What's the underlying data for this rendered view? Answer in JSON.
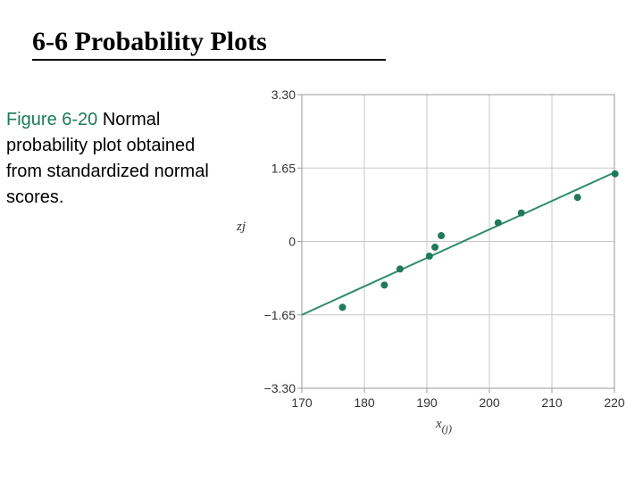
{
  "slide": {
    "title": "6-6 Probability Plots",
    "caption_label": "Figure 6-20",
    "caption_text": " Normal probability plot obtained from standardized normal scores."
  },
  "chart_data": {
    "type": "scatter",
    "xlabel": "x(j)",
    "ylabel": "zj",
    "xlim": [
      170,
      220
    ],
    "ylim": [
      -3.3,
      3.3
    ],
    "xticks": [
      170,
      180,
      190,
      200,
      210,
      220
    ],
    "yticks": [
      3.3,
      1.65,
      0,
      -1.65,
      -3.3
    ],
    "xtick_labels": [
      "170",
      "180",
      "190",
      "200",
      "210",
      "220"
    ],
    "ytick_labels": [
      "3.30",
      "1.65",
      "0",
      "−1.65",
      "−3.30"
    ],
    "grid": true,
    "points": [
      {
        "x": 176.5,
        "y": -1.48
      },
      {
        "x": 183.2,
        "y": -0.98
      },
      {
        "x": 185.7,
        "y": -0.62
      },
      {
        "x": 190.4,
        "y": -0.33
      },
      {
        "x": 191.3,
        "y": -0.13
      },
      {
        "x": 192.3,
        "y": 0.13
      },
      {
        "x": 201.4,
        "y": 0.42
      },
      {
        "x": 205.1,
        "y": 0.64
      },
      {
        "x": 214.1,
        "y": 0.99
      },
      {
        "x": 220.1,
        "y": 1.52
      }
    ],
    "fit_line": {
      "x": [
        170,
        220
      ],
      "y": [
        -1.65,
        1.55
      ]
    },
    "colors": {
      "marker": "#1f7a5c",
      "line": "#2e8b68",
      "grid": "#c8c8c8"
    }
  }
}
